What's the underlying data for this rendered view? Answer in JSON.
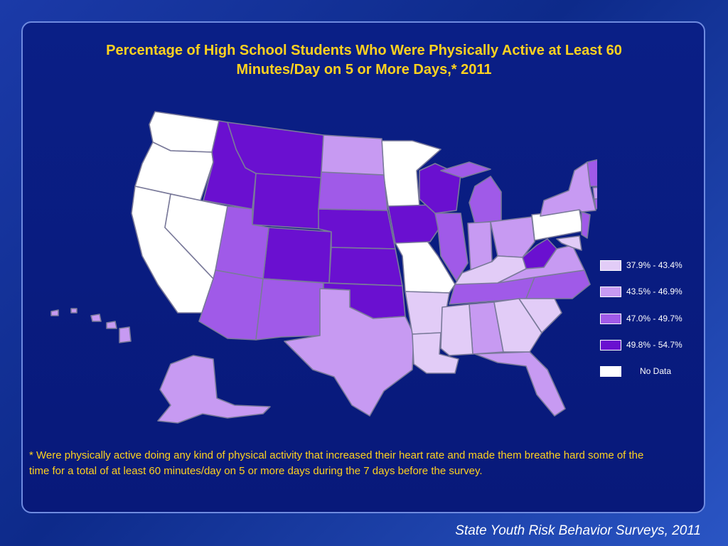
{
  "title_line1": "Percentage of High School Students Who Were Physically Active at Least 60",
  "title_line2": "Minutes/Day on 5 or More Days,* 2011",
  "legend": [
    {
      "label": "37.9% - 43.4%",
      "color": "#e2ccf7"
    },
    {
      "label": "43.5% - 46.9%",
      "color": "#c79af2"
    },
    {
      "label": "47.0% - 49.7%",
      "color": "#a05ae8"
    },
    {
      "label": "49.8% - 54.7%",
      "color": "#6a10d0"
    },
    {
      "label": "No Data",
      "color": "#ffffff"
    }
  ],
  "footnote": "* Were physically active doing any kind of physical activity that increased their heart rate and made them breathe hard some of the time for a total of at least 60 minutes/day on 5 or more days during the 7 days before the survey.",
  "source": "State Youth Risk Behavior Surveys, 2011"
}
